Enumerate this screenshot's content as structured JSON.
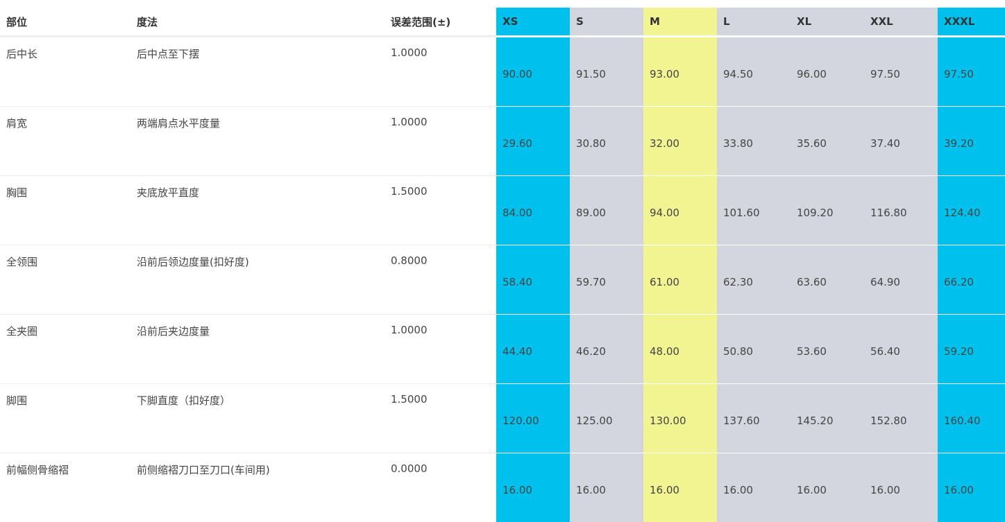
{
  "columns": {
    "part": "部位",
    "method": "度法",
    "tolerance": "误差范围(±)"
  },
  "sizes": [
    {
      "label": "XS",
      "color": "#00c1ee"
    },
    {
      "label": "S",
      "color": "#d3d6de"
    },
    {
      "label": "M",
      "color": "#f2f492"
    },
    {
      "label": "L",
      "color": "#d3d6de"
    },
    {
      "label": "XL",
      "color": "#d3d6de"
    },
    {
      "label": "XXL",
      "color": "#d3d6de"
    },
    {
      "label": "XXXL",
      "color": "#00c1ee"
    }
  ],
  "rows": [
    {
      "part": "后中长",
      "method": "后中点至下摆",
      "tolerance": "1.0000",
      "values": [
        "90.00",
        "91.50",
        "93.00",
        "94.50",
        "96.00",
        "97.50",
        "97.50"
      ]
    },
    {
      "part": "肩宽",
      "method": "两端肩点水平度量",
      "tolerance": "1.0000",
      "values": [
        "29.60",
        "30.80",
        "32.00",
        "33.80",
        "35.60",
        "37.40",
        "39.20"
      ]
    },
    {
      "part": "胸围",
      "method": "夹底放平直度",
      "tolerance": "1.5000",
      "values": [
        "84.00",
        "89.00",
        "94.00",
        "101.60",
        "109.20",
        "116.80",
        "124.40"
      ]
    },
    {
      "part": "全领围",
      "method": "沿前后领边度量(扣好度)",
      "tolerance": "0.8000",
      "values": [
        "58.40",
        "59.70",
        "61.00",
        "62.30",
        "63.60",
        "64.90",
        "66.20"
      ]
    },
    {
      "part": "全夹圈",
      "method": "沿前后夹边度量",
      "tolerance": "1.0000",
      "values": [
        "44.40",
        "46.20",
        "48.00",
        "50.80",
        "53.60",
        "56.40",
        "59.20"
      ]
    },
    {
      "part": "脚围",
      "method": "下脚直度（扣好度）",
      "tolerance": "1.5000",
      "values": [
        "120.00",
        "125.00",
        "130.00",
        "137.60",
        "145.20",
        "152.80",
        "160.40"
      ]
    },
    {
      "part": "前幅侧骨缩褶",
      "method": "前侧缩褶刀口至刀口(车间用)",
      "tolerance": "0.0000",
      "values": [
        "16.00",
        "16.00",
        "16.00",
        "16.00",
        "16.00",
        "16.00",
        "16.00"
      ]
    }
  ]
}
